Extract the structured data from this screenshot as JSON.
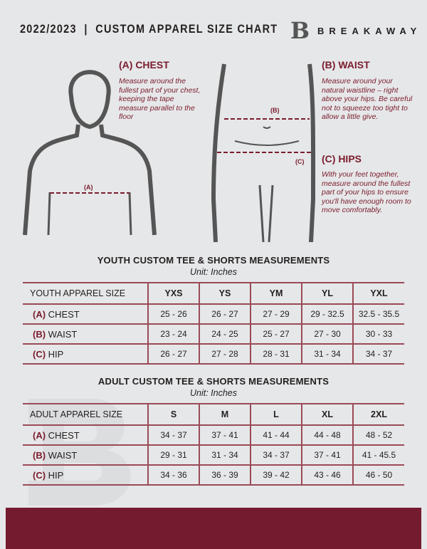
{
  "header": {
    "title": "2022/2023  |  CUSTOM APPAREL SIZE CHART",
    "brand": "BREAKAWAY"
  },
  "chest": {
    "title": "(A) CHEST",
    "desc": "Measure around the fullest part of your chest, keeping the tape measure parallel to the floor",
    "marker": "(A)"
  },
  "waist": {
    "title": "(B) WAIST",
    "desc": "Measure around your natural waistline – right above your hips. Be careful not to squeeze too tight to allow a little give.",
    "marker": "(B)"
  },
  "hips": {
    "title": "(C) HIPS",
    "desc": "With your feet together, measure around the fullest part of your hips to ensure you'll have enough room to move comfortably.",
    "marker": "(C)"
  },
  "colors": {
    "accent": "#7a1c2e",
    "background": "#e6e7e8"
  },
  "youth": {
    "title": "YOUTH CUSTOM TEE & SHORTS MEASUREMENTS",
    "unit": "Unit: Inches",
    "header": [
      "YOUTH APPAREL SIZE",
      "YXS",
      "YS",
      "YM",
      "YL",
      "YXL"
    ],
    "rows": [
      {
        "letter": "(A)",
        "label": "CHEST",
        "values": [
          "25 - 26",
          "26 - 27",
          "27 - 29",
          "29 - 32.5",
          "32.5 - 35.5"
        ]
      },
      {
        "letter": "(B)",
        "label": "WAIST",
        "values": [
          "23 - 24",
          "24 - 25",
          "25 - 27",
          "27 - 30",
          "30 - 33"
        ]
      },
      {
        "letter": "(C)",
        "label": "HIP",
        "values": [
          "26 - 27",
          "27 - 28",
          "28 - 31",
          "31 - 34",
          "34 - 37"
        ]
      }
    ]
  },
  "adult": {
    "title": "ADULT CUSTOM TEE & SHORTS MEASUREMENTS",
    "unit": "Unit: Inches",
    "header": [
      "ADULT APPAREL SIZE",
      "S",
      "M",
      "L",
      "XL",
      "2XL"
    ],
    "rows": [
      {
        "letter": "(A)",
        "label": "CHEST",
        "values": [
          "34 - 37",
          "37 - 41",
          "41 - 44",
          "44 - 48",
          "48 - 52"
        ]
      },
      {
        "letter": "(B)",
        "label": "WAIST",
        "values": [
          "29 - 31",
          "31 - 34",
          "34 - 37",
          "37 - 41",
          "41 - 45.5"
        ]
      },
      {
        "letter": "(C)",
        "label": "HIP",
        "values": [
          "34 - 36",
          "36 - 39",
          "39 - 42",
          "43 - 46",
          "46 - 50"
        ]
      }
    ]
  }
}
